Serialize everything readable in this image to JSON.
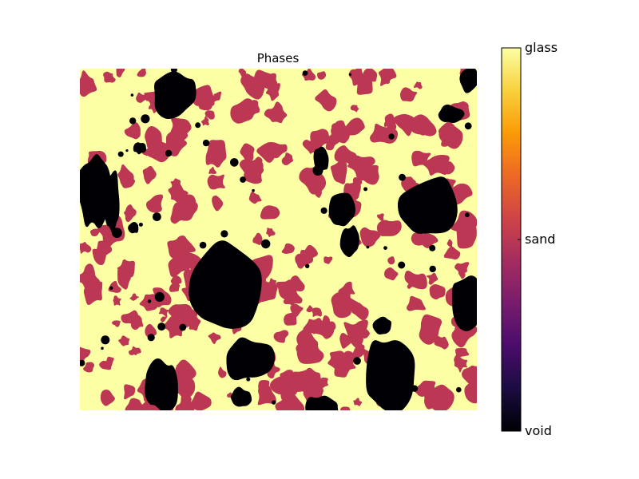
{
  "chart_data": {
    "type": "heatmap",
    "title": "Phases",
    "xlabel": "",
    "ylabel": "",
    "axes_visible": false,
    "colormap": "inferno",
    "phases": [
      {
        "label": "void",
        "value": 0,
        "color": "#000004"
      },
      {
        "label": "sand",
        "value": 1,
        "color": "#bc3754"
      },
      {
        "label": "glass",
        "value": 2,
        "color": "#fcffa4"
      }
    ],
    "colorbar": {
      "orientation": "vertical",
      "placement": "right",
      "ticks": [
        {
          "value": 0,
          "label": "void"
        },
        {
          "value": 1,
          "label": "sand"
        },
        {
          "value": 2,
          "label": "glass"
        }
      ],
      "gradient_stops": [
        "#000004",
        "#1b0c41",
        "#4a0c6b",
        "#781c6d",
        "#a52c60",
        "#cf4446",
        "#ed6925",
        "#fb9b06",
        "#f7d13d",
        "#fcffa4"
      ]
    }
  }
}
